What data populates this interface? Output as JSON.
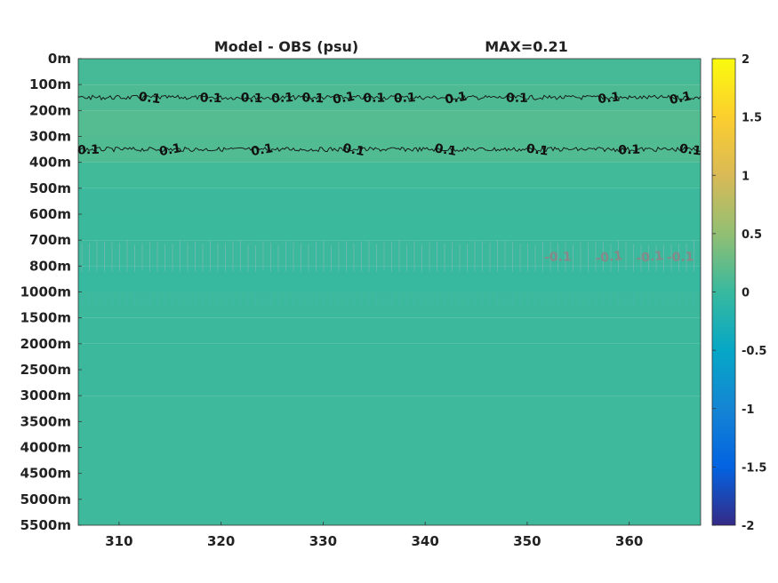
{
  "chart_data": {
    "type": "heatmap",
    "title": "Model - OBS (psu)",
    "annotation": "MAX=0.21",
    "x": {
      "ticks": [
        310,
        320,
        330,
        340,
        350,
        360
      ],
      "range": [
        306,
        367
      ]
    },
    "y": {
      "tick_labels": [
        "0m",
        "100m",
        "200m",
        "300m",
        "400m",
        "500m",
        "600m",
        "700m",
        "800m",
        "1000m",
        "1500m",
        "2000m",
        "2500m",
        "3000m",
        "3500m",
        "4000m",
        "4500m",
        "5000m",
        "5500m"
      ],
      "reversed": true
    },
    "colorbar": {
      "range": [
        -2,
        2
      ],
      "ticks": [
        "2",
        "1.5",
        "1",
        "0.5",
        "0",
        "-0.5",
        "-1",
        "-1.5",
        "-2"
      ],
      "colormap": "parula",
      "colors": [
        "#352a87",
        "#0363e1",
        "#1485d4",
        "#06a7c6",
        "#38b99e",
        "#92bf73",
        "#d9ba56",
        "#fcce2e",
        "#f9fb0e"
      ]
    },
    "layers": [
      {
        "depth": "0m-100m",
        "value": 0.08
      },
      {
        "depth": "100m-200m",
        "value": 0.12
      },
      {
        "depth": "200m-300m",
        "value": 0.16
      },
      {
        "depth": "300m-400m",
        "value": 0.14
      },
      {
        "depth": "400m-500m",
        "value": 0.05
      },
      {
        "depth": "500m-600m",
        "value": 0.02
      },
      {
        "depth": "600m-700m",
        "value": 0.01
      },
      {
        "depth": "700m-800m",
        "value": 0.02
      },
      {
        "depth": "800m-1000m",
        "value": -0.01
      },
      {
        "depth": "1000m-1500m",
        "value": 0.02
      },
      {
        "depth": "1500m-2000m",
        "value": 0.02
      },
      {
        "depth": "2000m-2500m",
        "value": 0.02
      },
      {
        "depth": "2500m-3000m",
        "value": 0.02
      },
      {
        "depth": "3000m-5500m",
        "value": 0.04
      }
    ],
    "contours": [
      {
        "level": "0.1",
        "depth_band": "100m-200m",
        "x_positions": [
          313,
          319,
          323,
          326,
          329,
          332,
          335,
          338,
          343,
          349,
          358,
          365
        ]
      },
      {
        "level": "0.1",
        "depth_band": "300m-400m",
        "x_positions": [
          307,
          315,
          324,
          333,
          342,
          351,
          360,
          366
        ]
      },
      {
        "level": "-0.1",
        "depth_band": "700m-800m",
        "x_positions": [
          353,
          358,
          362,
          365
        ]
      }
    ]
  }
}
